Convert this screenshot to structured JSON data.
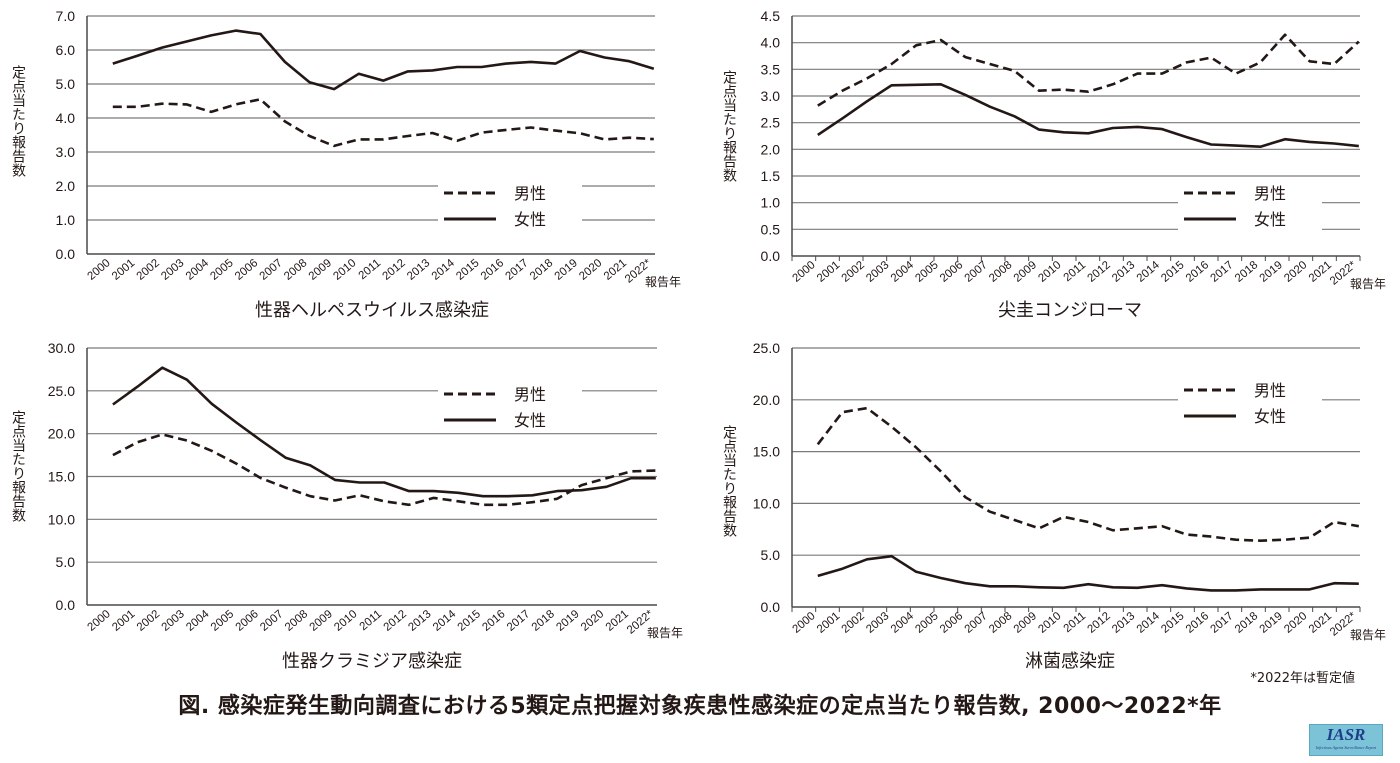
{
  "figure_title": "図. 感染症発生動向調査における5類定点把握対象疾患性感染症の定点当たり報告数, 2000〜2022*年",
  "footnote": "*2022年は暫定値",
  "logo": {
    "main": "IASR",
    "sub": "Infectious Agents Surveillance Report"
  },
  "colors": {
    "line": "#231815",
    "grid": "#7a7a7a",
    "logo_bg": "#7cc3d8"
  },
  "chart_data": [
    {
      "type": "line",
      "title": "性器ヘルペスウイルス感染症",
      "ylabel": "定点当たり報告数",
      "xlabel": "報告年",
      "ylim": [
        0,
        7
      ],
      "yticks": [
        "0.0",
        "1.0",
        "2.0",
        "3.0",
        "4.0",
        "5.0",
        "6.0",
        "7.0"
      ],
      "ystep": 1,
      "categories": [
        "2000",
        "2001",
        "2002",
        "2003",
        "2004",
        "2005",
        "2006",
        "2007",
        "2008",
        "2009",
        "2010",
        "2011",
        "2012",
        "2013",
        "2014",
        "2015",
        "2016",
        "2017",
        "2018",
        "2019",
        "2020",
        "2021",
        "2022*"
      ],
      "legend": [
        "男性",
        "女性"
      ],
      "legend_position": "lower-right",
      "grid": true,
      "series": [
        {
          "name": "男性",
          "style": "dashed",
          "values": [
            4.33,
            4.33,
            4.42,
            4.4,
            4.18,
            4.4,
            4.55,
            3.9,
            3.47,
            3.18,
            3.37,
            3.37,
            3.47,
            3.56,
            3.33,
            3.57,
            3.65,
            3.72,
            3.63,
            3.55,
            3.37,
            3.42,
            3.38
          ]
        },
        {
          "name": "女性",
          "style": "solid",
          "values": [
            5.6,
            5.83,
            6.07,
            6.25,
            6.43,
            6.57,
            6.47,
            5.65,
            5.05,
            4.85,
            5.3,
            5.1,
            5.37,
            5.4,
            5.5,
            5.5,
            5.6,
            5.65,
            5.6,
            5.97,
            5.78,
            5.67,
            5.45
          ]
        }
      ]
    },
    {
      "type": "line",
      "title": "尖圭コンジローマ",
      "ylabel": "定点当たり報告数",
      "xlabel": "報告年",
      "ylim": [
        0,
        4.5
      ],
      "yticks": [
        "0.0",
        "0.5",
        "1.0",
        "1.5",
        "2.0",
        "2.5",
        "3.0",
        "3.5",
        "4.0",
        "4.5"
      ],
      "ystep": 0.5,
      "categories": [
        "2000",
        "2001",
        "2002",
        "2003",
        "2004",
        "2005",
        "2006",
        "2007",
        "2008",
        "2009",
        "2010",
        "2011",
        "2012",
        "2013",
        "2014",
        "2015",
        "2016",
        "2017",
        "2018",
        "2019",
        "2020",
        "2021",
        "2022*"
      ],
      "legend": [
        "男性",
        "女性"
      ],
      "legend_position": "lower-right",
      "grid": true,
      "series": [
        {
          "name": "男性",
          "style": "dashed",
          "values": [
            2.82,
            3.1,
            3.33,
            3.6,
            3.95,
            4.05,
            3.73,
            3.6,
            3.47,
            3.1,
            3.12,
            3.08,
            3.22,
            3.42,
            3.42,
            3.63,
            3.72,
            3.42,
            3.63,
            4.15,
            3.65,
            3.6,
            4.02
          ]
        },
        {
          "name": "女性",
          "style": "solid",
          "values": [
            2.27,
            2.58,
            2.9,
            3.2,
            3.21,
            3.22,
            3.02,
            2.8,
            2.62,
            2.37,
            2.32,
            2.3,
            2.4,
            2.42,
            2.38,
            2.23,
            2.09,
            2.07,
            2.05,
            2.19,
            2.14,
            2.11,
            2.06
          ]
        }
      ]
    },
    {
      "type": "line",
      "title": "性器クラミジア感染症",
      "ylabel": "定点当たり報告数",
      "xlabel": "報告年",
      "ylim": [
        0,
        30
      ],
      "yticks": [
        "0.0",
        "5.0",
        "10.0",
        "15.0",
        "20.0",
        "25.0",
        "30.0"
      ],
      "ystep": 5,
      "categories": [
        "2000",
        "2001",
        "2002",
        "2003",
        "2004",
        "2005",
        "2006",
        "2007",
        "2008",
        "2009",
        "2010",
        "2011",
        "2012",
        "2013",
        "2014",
        "2015",
        "2016",
        "2017",
        "2018",
        "2019",
        "2020",
        "2021",
        "2022*"
      ],
      "legend": [
        "男性",
        "女性"
      ],
      "legend_position": "upper-right",
      "grid": true,
      "series": [
        {
          "name": "男性",
          "style": "dashed",
          "values": [
            17.5,
            19.0,
            19.9,
            19.2,
            18.0,
            16.5,
            14.8,
            13.7,
            12.7,
            12.2,
            12.8,
            12.1,
            11.7,
            12.5,
            12.1,
            11.7,
            11.7,
            12.0,
            12.4,
            14.0,
            14.8,
            15.6,
            15.7
          ]
        },
        {
          "name": "女性",
          "style": "solid",
          "values": [
            23.4,
            25.5,
            27.7,
            26.3,
            23.5,
            21.3,
            19.2,
            17.2,
            16.3,
            14.6,
            14.3,
            14.3,
            13.3,
            13.3,
            13.1,
            12.7,
            12.7,
            12.8,
            13.3,
            13.4,
            13.8,
            14.8,
            14.8
          ]
        }
      ]
    },
    {
      "type": "line",
      "title": "淋菌感染症",
      "ylabel": "定点当たり報告数",
      "xlabel": "報告年",
      "ylim": [
        0,
        25
      ],
      "yticks": [
        "0.0",
        "5.0",
        "10.0",
        "15.0",
        "20.0",
        "25.0"
      ],
      "ystep": 5,
      "categories": [
        "2000",
        "2001",
        "2002",
        "2003",
        "2004",
        "2005",
        "2006",
        "2007",
        "2008",
        "2009",
        "2010",
        "2011",
        "2012",
        "2013",
        "2014",
        "2015",
        "2016",
        "2017",
        "2018",
        "2019",
        "2020",
        "2021",
        "2022*"
      ],
      "legend": [
        "男性",
        "女性"
      ],
      "legend_position": "upper-right",
      "grid": true,
      "series": [
        {
          "name": "男性",
          "style": "dashed",
          "values": [
            15.7,
            18.8,
            19.2,
            17.4,
            15.4,
            13.1,
            10.6,
            9.2,
            8.4,
            7.6,
            8.7,
            8.2,
            7.4,
            7.6,
            7.8,
            7.0,
            6.8,
            6.5,
            6.4,
            6.5,
            6.7,
            8.2,
            7.8
          ]
        },
        {
          "name": "女性",
          "style": "solid",
          "values": [
            3.0,
            3.7,
            4.6,
            4.9,
            3.4,
            2.8,
            2.3,
            2.0,
            2.0,
            1.9,
            1.85,
            2.2,
            1.9,
            1.85,
            2.1,
            1.8,
            1.6,
            1.6,
            1.7,
            1.7,
            1.7,
            2.3,
            2.25
          ]
        }
      ]
    }
  ]
}
